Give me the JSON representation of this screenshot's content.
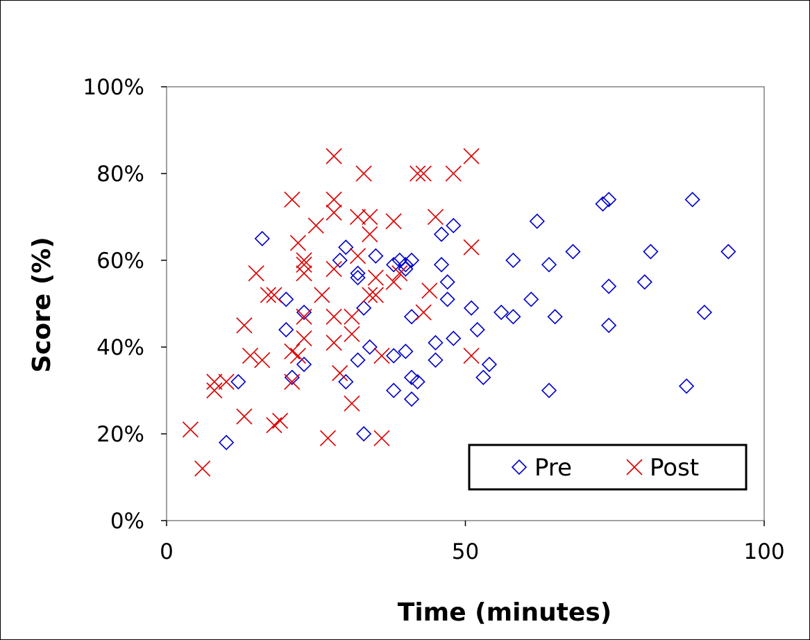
{
  "chart_data": {
    "type": "scatter",
    "xlabel": "Time (minutes)",
    "ylabel": "Score (%)",
    "xlim": [
      0,
      100
    ],
    "ylim": [
      0,
      100
    ],
    "x_ticks": [
      "0",
      "50",
      "100"
    ],
    "y_ticks": [
      "0%",
      "20%",
      "40%",
      "60%",
      "80%",
      "100%"
    ],
    "grid": false,
    "legend_position": "bottom-right",
    "series": [
      {
        "name": "Pre",
        "marker": "diamond",
        "color": "#0000cc",
        "points": [
          [
            10,
            18
          ],
          [
            12,
            32
          ],
          [
            16,
            65
          ],
          [
            20,
            51
          ],
          [
            20,
            44
          ],
          [
            21,
            33
          ],
          [
            23,
            48
          ],
          [
            23,
            36
          ],
          [
            29,
            60
          ],
          [
            30,
            63
          ],
          [
            30,
            32
          ],
          [
            32,
            57
          ],
          [
            32,
            56
          ],
          [
            32,
            37
          ],
          [
            33,
            49
          ],
          [
            33,
            20
          ],
          [
            34,
            40
          ],
          [
            35,
            61
          ],
          [
            38,
            59
          ],
          [
            38,
            38
          ],
          [
            38,
            30
          ],
          [
            39,
            60
          ],
          [
            40,
            59
          ],
          [
            40,
            58
          ],
          [
            40,
            39
          ],
          [
            41,
            60
          ],
          [
            41,
            47
          ],
          [
            41,
            33
          ],
          [
            42,
            32
          ],
          [
            41,
            28
          ],
          [
            45,
            37
          ],
          [
            45,
            41
          ],
          [
            46,
            66
          ],
          [
            46,
            59
          ],
          [
            47,
            55
          ],
          [
            47,
            51
          ],
          [
            48,
            68
          ],
          [
            48,
            42
          ],
          [
            51,
            49
          ],
          [
            52,
            44
          ],
          [
            53,
            33
          ],
          [
            54,
            36
          ],
          [
            56,
            48
          ],
          [
            58,
            47
          ],
          [
            58,
            60
          ],
          [
            61,
            51
          ],
          [
            62,
            69
          ],
          [
            64,
            59
          ],
          [
            64,
            30
          ],
          [
            65,
            47
          ],
          [
            68,
            62
          ],
          [
            73,
            73
          ],
          [
            74,
            74
          ],
          [
            74,
            54
          ],
          [
            74,
            45
          ],
          [
            80,
            55
          ],
          [
            81,
            62
          ],
          [
            87,
            31
          ],
          [
            88,
            74
          ],
          [
            90,
            48
          ],
          [
            94,
            62
          ]
        ]
      },
      {
        "name": "Post",
        "marker": "x",
        "color": "#dd0000",
        "points": [
          [
            4,
            21
          ],
          [
            6,
            12
          ],
          [
            8,
            30
          ],
          [
            8,
            32
          ],
          [
            10,
            32
          ],
          [
            13,
            24
          ],
          [
            13,
            45
          ],
          [
            14,
            38
          ],
          [
            15,
            57
          ],
          [
            16,
            37
          ],
          [
            17,
            52
          ],
          [
            18,
            52
          ],
          [
            18,
            22
          ],
          [
            19,
            23
          ],
          [
            21,
            74
          ],
          [
            21,
            32
          ],
          [
            21,
            39
          ],
          [
            22,
            64
          ],
          [
            22,
            38
          ],
          [
            23,
            60
          ],
          [
            23,
            57
          ],
          [
            23,
            59
          ],
          [
            23,
            42
          ],
          [
            23,
            47
          ],
          [
            25,
            68
          ],
          [
            26,
            52
          ],
          [
            27,
            19
          ],
          [
            28,
            84
          ],
          [
            28,
            74
          ],
          [
            28,
            71
          ],
          [
            28,
            58
          ],
          [
            28,
            47
          ],
          [
            28,
            41
          ],
          [
            29,
            34
          ],
          [
            31,
            27
          ],
          [
            31,
            43
          ],
          [
            31,
            47
          ],
          [
            32,
            70
          ],
          [
            32,
            61
          ],
          [
            33,
            80
          ],
          [
            34,
            70
          ],
          [
            34,
            66
          ],
          [
            34,
            52
          ],
          [
            35,
            56
          ],
          [
            35,
            52
          ],
          [
            36,
            19
          ],
          [
            36,
            38
          ],
          [
            38,
            69
          ],
          [
            38,
            55
          ],
          [
            39,
            57
          ],
          [
            42,
            80
          ],
          [
            43,
            80
          ],
          [
            43,
            48
          ],
          [
            44,
            53
          ],
          [
            45,
            70
          ],
          [
            48,
            80
          ],
          [
            51,
            84
          ],
          [
            51,
            63
          ],
          [
            51,
            38
          ]
        ]
      }
    ]
  }
}
